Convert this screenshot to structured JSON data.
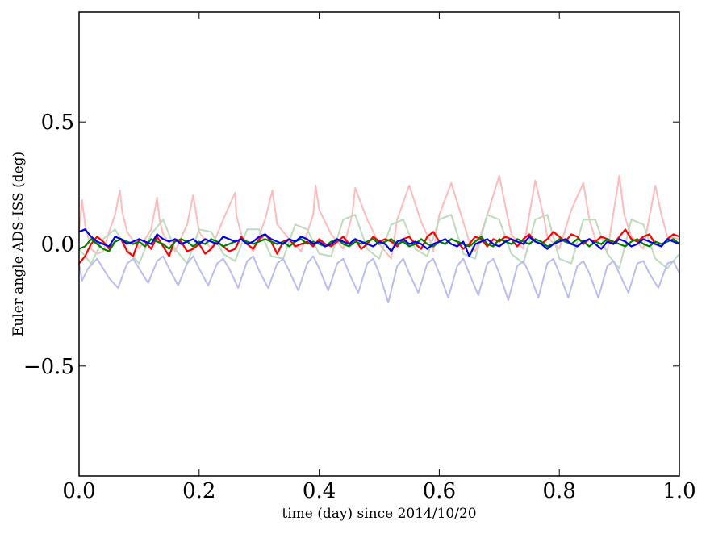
{
  "chart_data": {
    "type": "line",
    "title": "",
    "xlabel": "time (day) since 2014/10/20",
    "ylabel": "Euler angle ADS-ISS (deg)",
    "xlim": [
      0.0,
      1.0
    ],
    "ylim": [
      -0.95,
      0.95
    ],
    "x_ticks": [
      0.0,
      0.2,
      0.4,
      0.6,
      0.8,
      1.0
    ],
    "x_tick_labels": [
      "0.0",
      "0.2",
      "0.4",
      "0.6",
      "0.8",
      "1.0"
    ],
    "y_ticks": [
      -0.5,
      0.0,
      0.5
    ],
    "y_tick_labels": [
      "−0.5",
      "0.0",
      "0.5"
    ],
    "grid": false,
    "legend": "none",
    "series": [
      {
        "color": "#ffbbbb",
        "x": [
          0.0,
          0.005,
          0.01,
          0.02,
          0.03,
          0.04,
          0.05,
          0.06,
          0.068,
          0.072,
          0.08,
          0.1,
          0.12,
          0.13,
          0.134,
          0.14,
          0.16,
          0.18,
          0.19,
          0.196,
          0.2,
          0.22,
          0.24,
          0.26,
          0.262,
          0.27,
          0.29,
          0.31,
          0.322,
          0.33,
          0.35,
          0.37,
          0.39,
          0.394,
          0.4,
          0.42,
          0.44,
          0.455,
          0.46,
          0.48,
          0.5,
          0.52,
          0.53,
          0.55,
          0.57,
          0.585,
          0.59,
          0.6,
          0.62,
          0.64,
          0.65,
          0.66,
          0.68,
          0.7,
          0.713,
          0.72,
          0.74,
          0.76,
          0.775,
          0.78,
          0.8,
          0.82,
          0.84,
          0.85,
          0.86,
          0.88,
          0.9,
          0.908,
          0.92,
          0.94,
          0.96,
          0.97,
          0.98,
          1.0
        ],
        "y": [
          0.05,
          0.18,
          0.08,
          -0.02,
          -0.04,
          -0.03,
          0.05,
          0.12,
          0.22,
          0.13,
          0.05,
          -0.02,
          0.06,
          0.19,
          0.1,
          0.04,
          -0.03,
          0.08,
          0.2,
          0.11,
          0.05,
          -0.02,
          0.1,
          0.21,
          0.12,
          0.04,
          -0.03,
          0.1,
          0.22,
          0.08,
          0.02,
          -0.03,
          0.12,
          0.24,
          0.14,
          0.04,
          -0.02,
          0.12,
          0.23,
          0.1,
          0.0,
          -0.06,
          0.1,
          0.24,
          0.09,
          0.01,
          -0.03,
          0.12,
          0.25,
          0.09,
          0.01,
          -0.03,
          0.12,
          0.28,
          0.12,
          0.04,
          -0.02,
          0.26,
          0.1,
          0.03,
          -0.02,
          0.14,
          0.25,
          0.1,
          0.02,
          -0.03,
          0.28,
          0.12,
          0.03,
          -0.02,
          0.24,
          0.12,
          0.03,
          0.02
        ]
      },
      {
        "color": "#bbdcbb",
        "x": [
          0.0,
          0.02,
          0.04,
          0.06,
          0.08,
          0.1,
          0.12,
          0.14,
          0.16,
          0.18,
          0.2,
          0.22,
          0.24,
          0.26,
          0.28,
          0.3,
          0.32,
          0.34,
          0.36,
          0.38,
          0.4,
          0.42,
          0.44,
          0.46,
          0.48,
          0.5,
          0.52,
          0.54,
          0.56,
          0.58,
          0.6,
          0.62,
          0.64,
          0.66,
          0.68,
          0.7,
          0.72,
          0.74,
          0.76,
          0.78,
          0.8,
          0.82,
          0.84,
          0.86,
          0.88,
          0.9,
          0.92,
          0.94,
          0.96,
          0.98,
          1.0
        ],
        "y": [
          -0.02,
          -0.08,
          0.02,
          0.06,
          -0.02,
          -0.08,
          0.04,
          0.1,
          -0.02,
          -0.08,
          0.06,
          0.05,
          -0.04,
          -0.07,
          0.06,
          0.06,
          -0.05,
          -0.06,
          0.08,
          0.06,
          -0.04,
          -0.05,
          0.1,
          0.12,
          -0.02,
          -0.06,
          0.08,
          0.1,
          -0.02,
          -0.05,
          0.1,
          0.12,
          -0.04,
          -0.06,
          0.12,
          0.1,
          -0.04,
          -0.08,
          0.1,
          0.12,
          -0.06,
          -0.08,
          0.1,
          0.1,
          -0.04,
          -0.1,
          0.1,
          0.08,
          -0.06,
          -0.1,
          -0.04
        ]
      },
      {
        "color": "#bbbbf5",
        "x": [
          0.0,
          0.005,
          0.015,
          0.03,
          0.04,
          0.05,
          0.065,
          0.08,
          0.09,
          0.1,
          0.115,
          0.13,
          0.14,
          0.15,
          0.165,
          0.18,
          0.19,
          0.2,
          0.215,
          0.23,
          0.24,
          0.25,
          0.265,
          0.28,
          0.29,
          0.3,
          0.315,
          0.33,
          0.34,
          0.35,
          0.365,
          0.38,
          0.39,
          0.4,
          0.415,
          0.43,
          0.44,
          0.45,
          0.465,
          0.48,
          0.49,
          0.5,
          0.515,
          0.53,
          0.54,
          0.55,
          0.565,
          0.58,
          0.59,
          0.6,
          0.615,
          0.63,
          0.64,
          0.65,
          0.665,
          0.68,
          0.69,
          0.7,
          0.715,
          0.73,
          0.74,
          0.75,
          0.765,
          0.78,
          0.79,
          0.8,
          0.815,
          0.83,
          0.84,
          0.85,
          0.865,
          0.88,
          0.89,
          0.9,
          0.915,
          0.93,
          0.94,
          0.95,
          0.965,
          0.98,
          0.99,
          1.0
        ],
        "y": [
          -0.08,
          -0.15,
          -0.1,
          -0.06,
          -0.1,
          -0.14,
          -0.18,
          -0.08,
          -0.06,
          -0.1,
          -0.16,
          -0.07,
          -0.05,
          -0.1,
          -0.17,
          -0.08,
          -0.05,
          -0.1,
          -0.17,
          -0.08,
          -0.06,
          -0.1,
          -0.18,
          -0.07,
          -0.05,
          -0.11,
          -0.18,
          -0.08,
          -0.06,
          -0.11,
          -0.19,
          -0.08,
          -0.05,
          -0.1,
          -0.19,
          -0.08,
          -0.06,
          -0.12,
          -0.2,
          -0.08,
          -0.06,
          -0.12,
          -0.24,
          -0.09,
          -0.06,
          -0.12,
          -0.2,
          -0.08,
          -0.06,
          -0.12,
          -0.22,
          -0.09,
          -0.06,
          -0.12,
          -0.21,
          -0.08,
          -0.06,
          -0.12,
          -0.23,
          -0.09,
          -0.07,
          -0.12,
          -0.22,
          -0.08,
          -0.06,
          -0.12,
          -0.22,
          -0.09,
          -0.07,
          -0.12,
          -0.22,
          -0.09,
          -0.07,
          -0.12,
          -0.2,
          -0.08,
          -0.07,
          -0.12,
          -0.18,
          -0.08,
          -0.07,
          -0.12
        ]
      },
      {
        "color": "#ff0000",
        "x": [
          0.0,
          0.01,
          0.02,
          0.03,
          0.04,
          0.05,
          0.06,
          0.07,
          0.08,
          0.09,
          0.1,
          0.11,
          0.12,
          0.13,
          0.14,
          0.15,
          0.16,
          0.17,
          0.18,
          0.19,
          0.2,
          0.21,
          0.22,
          0.23,
          0.24,
          0.25,
          0.26,
          0.27,
          0.28,
          0.29,
          0.3,
          0.31,
          0.32,
          0.33,
          0.34,
          0.35,
          0.36,
          0.37,
          0.38,
          0.39,
          0.4,
          0.41,
          0.42,
          0.43,
          0.44,
          0.45,
          0.46,
          0.47,
          0.48,
          0.49,
          0.5,
          0.51,
          0.52,
          0.53,
          0.54,
          0.55,
          0.56,
          0.57,
          0.58,
          0.59,
          0.6,
          0.61,
          0.62,
          0.63,
          0.64,
          0.65,
          0.66,
          0.67,
          0.68,
          0.69,
          0.7,
          0.71,
          0.72,
          0.73,
          0.74,
          0.75,
          0.76,
          0.77,
          0.78,
          0.79,
          0.8,
          0.81,
          0.82,
          0.83,
          0.84,
          0.85,
          0.86,
          0.87,
          0.88,
          0.89,
          0.9,
          0.91,
          0.92,
          0.93,
          0.94,
          0.95,
          0.96,
          0.97,
          0.98,
          0.99,
          1.0
        ],
        "y": [
          -0.08,
          -0.05,
          0.0,
          0.03,
          0.01,
          -0.02,
          0.01,
          0.02,
          -0.03,
          -0.05,
          0.02,
          0.01,
          -0.02,
          0.03,
          -0.01,
          -0.05,
          0.02,
          0.01,
          -0.03,
          -0.02,
          0.0,
          -0.04,
          -0.02,
          0.01,
          -0.01,
          -0.03,
          -0.02,
          0.03,
          0.0,
          -0.02,
          0.02,
          0.04,
          0.01,
          -0.04,
          0.01,
          0.02,
          -0.01,
          0.0,
          0.01,
          -0.01,
          0.02,
          0.0,
          -0.01,
          0.01,
          0.03,
          0.0,
          0.02,
          -0.02,
          0.0,
          0.03,
          0.01,
          0.02,
          0.01,
          -0.01,
          0.02,
          0.03,
          0.0,
          -0.02,
          0.03,
          0.05,
          0.01,
          0.0,
          0.02,
          0.01,
          -0.02,
          0.0,
          0.03,
          0.02,
          -0.01,
          0.02,
          0.01,
          0.03,
          0.02,
          -0.01,
          0.02,
          0.04,
          0.01,
          0.0,
          0.02,
          0.05,
          0.03,
          0.01,
          0.04,
          0.03,
          0.0,
          0.02,
          0.01,
          0.03,
          0.02,
          0.0,
          0.03,
          0.06,
          0.02,
          0.01,
          0.03,
          0.04,
          0.0,
          -0.01,
          0.02,
          0.04,
          0.03
        ]
      },
      {
        "color": "#008000",
        "x": [
          0.0,
          0.01,
          0.02,
          0.03,
          0.04,
          0.05,
          0.06,
          0.07,
          0.08,
          0.09,
          0.1,
          0.11,
          0.12,
          0.13,
          0.14,
          0.15,
          0.16,
          0.17,
          0.18,
          0.19,
          0.2,
          0.21,
          0.22,
          0.23,
          0.24,
          0.25,
          0.26,
          0.27,
          0.28,
          0.29,
          0.3,
          0.31,
          0.32,
          0.33,
          0.34,
          0.35,
          0.36,
          0.37,
          0.38,
          0.39,
          0.4,
          0.41,
          0.42,
          0.43,
          0.44,
          0.45,
          0.46,
          0.47,
          0.48,
          0.49,
          0.5,
          0.51,
          0.52,
          0.53,
          0.54,
          0.55,
          0.56,
          0.57,
          0.58,
          0.59,
          0.6,
          0.61,
          0.62,
          0.63,
          0.64,
          0.65,
          0.66,
          0.67,
          0.68,
          0.69,
          0.7,
          0.71,
          0.72,
          0.73,
          0.74,
          0.75,
          0.76,
          0.77,
          0.78,
          0.79,
          0.8,
          0.81,
          0.82,
          0.83,
          0.84,
          0.85,
          0.86,
          0.87,
          0.88,
          0.89,
          0.9,
          0.91,
          0.92,
          0.93,
          0.94,
          0.95,
          0.96,
          0.97,
          0.98,
          0.99,
          1.0
        ],
        "y": [
          -0.02,
          -0.01,
          0.02,
          0.0,
          -0.02,
          -0.03,
          0.01,
          0.02,
          0.01,
          0.0,
          0.01,
          -0.01,
          0.02,
          0.01,
          0.0,
          -0.02,
          0.01,
          0.02,
          0.01,
          -0.01,
          0.01,
          0.0,
          0.02,
          0.01,
          -0.01,
          0.0,
          0.01,
          0.02,
          0.01,
          0.0,
          0.01,
          0.02,
          0.01,
          0.0,
          0.01,
          -0.01,
          0.01,
          0.02,
          0.0,
          0.01,
          0.0,
          -0.01,
          0.01,
          0.02,
          0.0,
          -0.01,
          0.01,
          0.0,
          0.01,
          0.02,
          0.0,
          0.01,
          0.02,
          0.0,
          0.01,
          -0.01,
          0.0,
          0.02,
          0.0,
          -0.01,
          0.01,
          0.0,
          0.02,
          0.01,
          0.0,
          -0.01,
          0.01,
          0.03,
          0.0,
          -0.01,
          0.02,
          0.01,
          0.0,
          0.02,
          0.01,
          0.0,
          0.02,
          0.01,
          -0.01,
          0.0,
          0.02,
          0.01,
          0.0,
          0.02,
          0.01,
          -0.01,
          0.01,
          0.0,
          0.02,
          0.01,
          0.0,
          -0.01,
          0.01,
          0.02,
          0.0,
          -0.01,
          0.01,
          0.0,
          0.01,
          0.02,
          0.0
        ]
      },
      {
        "color": "#0000ee",
        "x": [
          0.0,
          0.01,
          0.02,
          0.03,
          0.04,
          0.05,
          0.06,
          0.07,
          0.08,
          0.09,
          0.1,
          0.11,
          0.12,
          0.13,
          0.14,
          0.15,
          0.16,
          0.17,
          0.18,
          0.19,
          0.2,
          0.21,
          0.22,
          0.23,
          0.24,
          0.25,
          0.26,
          0.27,
          0.28,
          0.29,
          0.3,
          0.31,
          0.32,
          0.33,
          0.34,
          0.35,
          0.36,
          0.37,
          0.38,
          0.39,
          0.4,
          0.41,
          0.42,
          0.43,
          0.44,
          0.45,
          0.46,
          0.47,
          0.48,
          0.49,
          0.5,
          0.51,
          0.52,
          0.53,
          0.54,
          0.55,
          0.56,
          0.57,
          0.58,
          0.59,
          0.6,
          0.61,
          0.62,
          0.63,
          0.64,
          0.65,
          0.66,
          0.67,
          0.68,
          0.69,
          0.7,
          0.71,
          0.72,
          0.73,
          0.74,
          0.75,
          0.76,
          0.77,
          0.78,
          0.79,
          0.8,
          0.81,
          0.82,
          0.83,
          0.84,
          0.85,
          0.86,
          0.87,
          0.88,
          0.89,
          0.9,
          0.91,
          0.92,
          0.93,
          0.94,
          0.95,
          0.96,
          0.97,
          0.98,
          0.99,
          1.0
        ],
        "y": [
          0.05,
          0.06,
          0.03,
          0.01,
          0.0,
          -0.01,
          0.03,
          0.02,
          0.0,
          0.01,
          0.02,
          0.01,
          0.0,
          0.04,
          0.02,
          0.01,
          0.02,
          0.0,
          0.01,
          0.02,
          0.0,
          0.02,
          0.01,
          0.0,
          0.03,
          0.02,
          0.01,
          0.02,
          0.0,
          0.01,
          0.03,
          0.04,
          0.02,
          0.01,
          0.0,
          0.02,
          0.01,
          0.03,
          0.02,
          0.0,
          0.01,
          -0.01,
          0.0,
          0.02,
          0.01,
          0.0,
          0.02,
          0.01,
          0.0,
          -0.01,
          0.01,
          0.0,
          -0.03,
          0.01,
          0.02,
          0.0,
          0.01,
          0.0,
          -0.02,
          0.0,
          0.01,
          0.02,
          0.0,
          -0.01,
          0.01,
          -0.05,
          0.0,
          0.01,
          0.02,
          0.0,
          -0.01,
          0.01,
          0.02,
          0.01,
          0.0,
          0.03,
          0.01,
          0.0,
          -0.02,
          0.0,
          0.01,
          0.02,
          0.0,
          -0.01,
          0.01,
          0.02,
          0.0,
          -0.02,
          0.01,
          0.0,
          0.02,
          0.01,
          -0.01,
          0.0,
          0.02,
          0.01,
          0.0,
          -0.01,
          0.02,
          0.01,
          0.0
        ]
      }
    ]
  }
}
